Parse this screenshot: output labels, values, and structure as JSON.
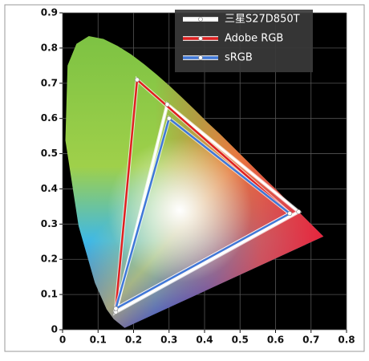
{
  "chart_data": {
    "type": "gamut",
    "xlim": [
      0,
      0.8
    ],
    "ylim": [
      0,
      0.9
    ],
    "xticks": [
      0,
      0.1,
      0.2,
      0.3,
      0.4,
      0.5,
      0.6,
      0.7,
      0.8
    ],
    "yticks": [
      0,
      0.1,
      0.2,
      0.3,
      0.4,
      0.5,
      0.6,
      0.7,
      0.8,
      0.9
    ],
    "grid": true,
    "legend": "top-right",
    "series": [
      {
        "name": "三星S27D850T",
        "color": "#ffffff",
        "x": [
          0.295,
          0.665,
          0.15
        ],
        "values": [
          0.64,
          0.335,
          0.05
        ]
      },
      {
        "name": "Adobe RGB",
        "color": "#e02020",
        "x": [
          0.21,
          0.64,
          0.15
        ],
        "values": [
          0.71,
          0.33,
          0.06
        ]
      },
      {
        "name": "sRGB",
        "color": "#3f78d8",
        "x": [
          0.3,
          0.64,
          0.15
        ],
        "values": [
          0.6,
          0.33,
          0.06
        ]
      }
    ]
  }
}
